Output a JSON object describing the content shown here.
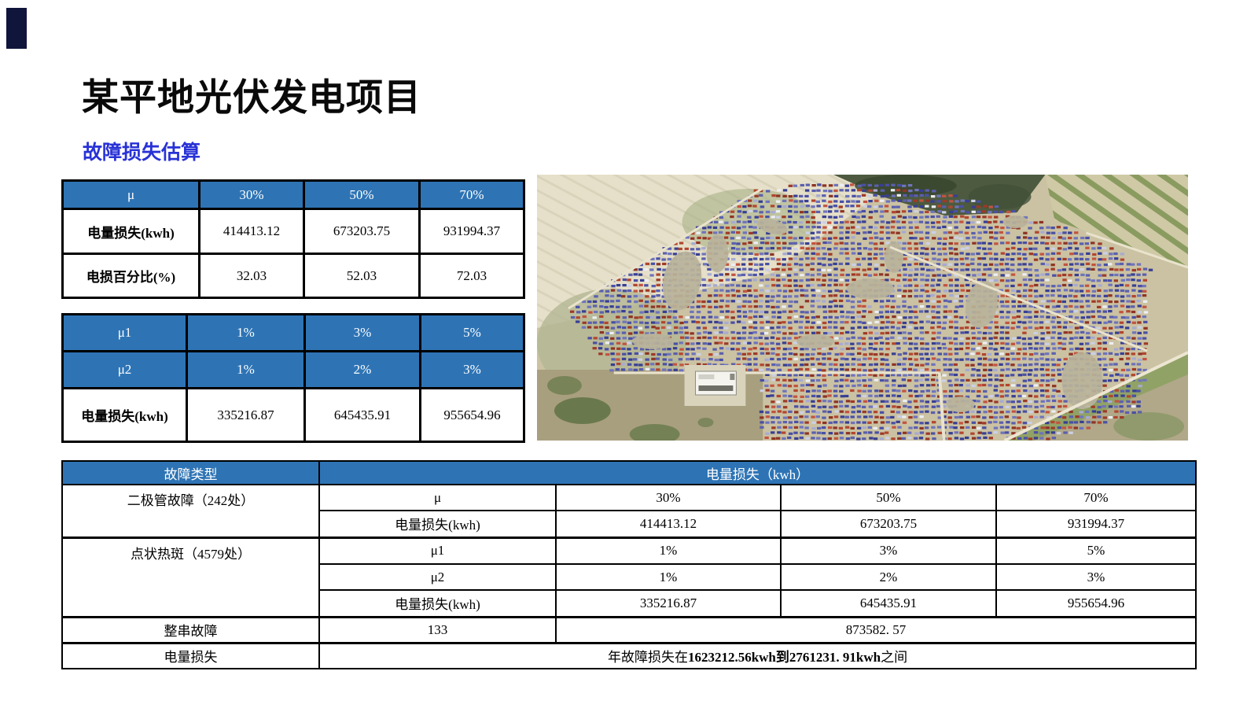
{
  "slide": {
    "title": "某平地光伏发电项目",
    "subtitle": "故障损失估算"
  },
  "loss_table": {
    "header": {
      "param": "μ",
      "c1": "30%",
      "c2": "50%",
      "c3": "70%"
    },
    "rows": [
      {
        "label": "电量损失(kwh)",
        "c1": "414413.12",
        "c2": "673203.75",
        "c3": "931994.37"
      },
      {
        "label": "电损百分比(%)",
        "c1": "32.03",
        "c2": "52.03",
        "c3": "72.03"
      }
    ]
  },
  "hotspot_table": {
    "header_rows": [
      {
        "label": "μ1",
        "c1": "1%",
        "c2": "3%",
        "c3": "5%"
      },
      {
        "label": "μ2",
        "c1": "1%",
        "c2": "2%",
        "c3": "3%"
      }
    ],
    "rows": [
      {
        "label": "电量损失(kwh)",
        "c1": "335216.87",
        "c2": "645435.91",
        "c3": "955654.96"
      }
    ]
  },
  "fault_table": {
    "header": {
      "fault_type": "故障类型",
      "loss": "电量损失（kwh）"
    },
    "diode": {
      "label": "二极管故障（242处）",
      "mu_label": "μ",
      "mu": [
        "30%",
        "50%",
        "70%"
      ],
      "loss_label": "电量损失(kwh)",
      "loss": [
        "414413.12",
        "673203.75",
        "931994.37"
      ]
    },
    "hotspot": {
      "label": "点状热斑（4579处）",
      "mu1_label": "μ1",
      "mu1": [
        "1%",
        "3%",
        "5%"
      ],
      "mu2_label": "μ2",
      "mu2": [
        "1%",
        "2%",
        "3%"
      ],
      "loss_label": "电量损失(kwh)",
      "loss": [
        "335216.87",
        "645435.91",
        "955654.96"
      ]
    },
    "string_fault": {
      "label": "整串故障",
      "count": "133",
      "loss": "873582. 57"
    },
    "annual": {
      "label": "电量损失",
      "prefix": "年故障损失在",
      "min": "1623212.56kwh",
      "mid": "到",
      "max": "2761231. 91kwh",
      "suffix": "之间"
    }
  },
  "colors": {
    "table_header_blue": "#2E74B5",
    "subtitle_blue": "#2832D6",
    "accent_dark": "#10153C",
    "panel_blue": "#4A50A5",
    "panel_red": "#B2462F"
  }
}
